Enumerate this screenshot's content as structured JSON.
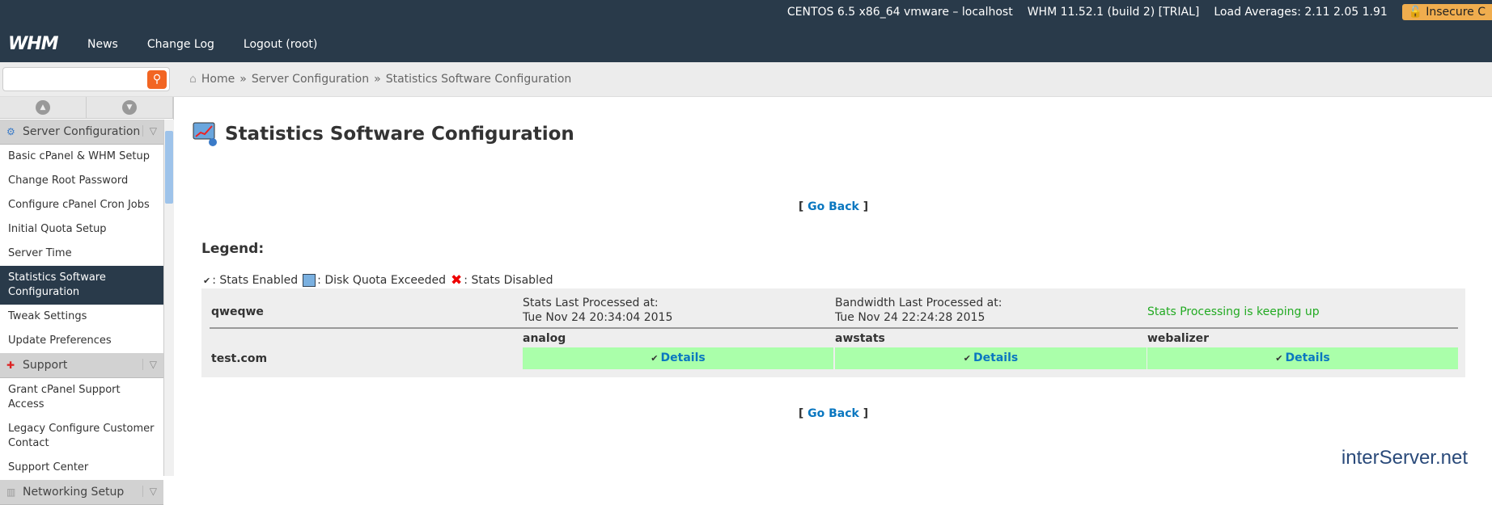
{
  "topbar": {
    "server": "CENTOS 6.5 x86_64 vmware – localhost",
    "version": "WHM 11.52.1 (build 2) [TRIAL]",
    "load": "Load Averages: 2.11 2.05 1.91",
    "insecure": "Insecure C",
    "logo": "WHM"
  },
  "nav": [
    "News",
    "Change Log",
    "Logout (root)"
  ],
  "search": {
    "placeholder": "",
    "value": ""
  },
  "breadcrumb": [
    "Home",
    "Server Configuration",
    "Statistics Software Configuration"
  ],
  "sidebar": {
    "sections": [
      {
        "label": "Server Configuration",
        "icon": "gear-server-icon",
        "items": [
          "Basic cPanel & WHM Setup",
          "Change Root Password",
          "Configure cPanel Cron Jobs",
          "Initial Quota Setup",
          "Server Time",
          "Statistics Software Configuration",
          "Tweak Settings",
          "Update Preferences"
        ]
      },
      {
        "label": "Support",
        "icon": "lifebuoy-icon",
        "items": [
          "Grant cPanel Support Access",
          "Legacy Configure Customer Contact",
          "Support Center"
        ]
      },
      {
        "label": "Networking Setup",
        "icon": "network-icon",
        "items": []
      }
    ],
    "active": "Statistics Software Configuration"
  },
  "page": {
    "title": "Statistics Software Configuration",
    "go_back": "Go Back",
    "lb": "[",
    "rb": "]",
    "legend_title": "Legend:",
    "legend": {
      "enabled": ": Stats Enabled",
      "quota": ": Disk Quota Exceeded",
      "disabled": ": Stats Disabled"
    }
  },
  "table": {
    "user": "qweqwe",
    "stats_label": "Stats Last Processed at:",
    "stats_time": "Tue Nov 24 20:34:04 2015",
    "bw_label": "Bandwidth Last Processed at:",
    "bw_time": "Tue Nov 24 22:24:28 2015",
    "status": "Stats Processing is keeping up",
    "domain": "test.com",
    "programs": [
      {
        "name": "analog",
        "link": "Details"
      },
      {
        "name": "awstats",
        "link": "Details"
      },
      {
        "name": "webalizer",
        "link": "Details"
      }
    ]
  },
  "colors": {
    "topbar": "#293a4a",
    "enabled": "#aaffaa",
    "status": "#22aa22",
    "link": "#0a77c0"
  },
  "footer_logo": "interServer.net"
}
